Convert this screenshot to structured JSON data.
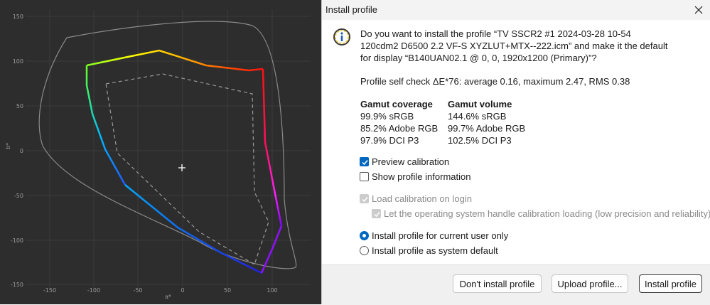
{
  "plot": {
    "x_axis_label": "a*",
    "y_axis_label": "b*",
    "x_ticks": [
      "-150",
      "-100",
      "-50",
      "0",
      "50",
      "100"
    ],
    "y_ticks": [
      "150",
      "100",
      "50",
      "0",
      "-50",
      "-100",
      "-150"
    ]
  },
  "dialog": {
    "title": "Install profile",
    "icon": "info-icon",
    "question_lines": [
      "Do you want to install the profile “TV SSCR2 #1 2024-03-28 10-54",
      "120cdm2 D6500 2.2 VF-S XYZLUT+MTX--222.icm” and make it the default",
      "for display “B140UAN02.1 @ 0, 0, 1920x1200 (Primary)”?"
    ],
    "self_check": "Profile self check ΔE*76: average 0.16, maximum 2.47, RMS 0.38",
    "gamut": {
      "coverage_header": "Gamut coverage",
      "volume_header": "Gamut volume",
      "coverage": [
        "99.9% sRGB",
        "85.2% Adobe RGB",
        "97.9% DCI P3"
      ],
      "volume": [
        "144.6% sRGB",
        "99.7% Adobe RGB",
        "102.5% DCI P3"
      ]
    },
    "options": {
      "preview_calibration": {
        "label": "Preview calibration",
        "checked": true
      },
      "show_profile_information": {
        "label": "Show profile information",
        "checked": false
      },
      "load_calibration_on_login": {
        "label": "Load calibration on login",
        "checked": true,
        "disabled": true
      },
      "os_handle_calibration": {
        "label": "Let the operating system handle calibration loading (low precision and reliability)",
        "checked": true,
        "disabled": true
      }
    },
    "install_scope": {
      "current_user": {
        "label": "Install profile for current user only",
        "selected": true
      },
      "system_default": {
        "label": "Install profile as system default",
        "selected": false
      }
    },
    "buttons": {
      "dont_install": "Don't install profile",
      "upload": "Upload profile...",
      "install": "Install profile"
    },
    "colors": {
      "accent": "#0067c0",
      "plot_background": "#2d2d2d"
    }
  }
}
